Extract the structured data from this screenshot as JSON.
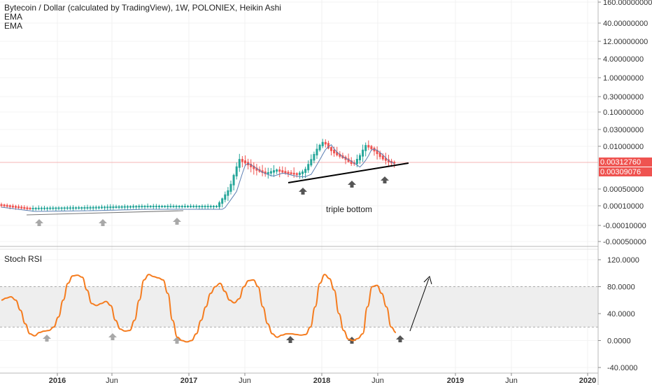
{
  "header": {
    "title": "Bytecoin / Dollar (calculated by TradingView), 1W, POLONIEX, Heikin Ashi",
    "indicator_1": "EMA",
    "indicator_2": "EMA"
  },
  "colors": {
    "up_candle": "#26a69a",
    "down_candle": "#ef5350",
    "ema_line": "#5b7fb3",
    "rsi_line": "#f57c1f",
    "trend_line": "#000000",
    "arrow_gray": "#a8a8a8",
    "arrow_dark": "#555555",
    "price_badge": "#ef5350",
    "rsi_band": "#eeeeee"
  },
  "chart_data": [
    {
      "type": "candlestick",
      "title": "Bytecoin / Dollar (calculated by TradingView), 1W, POLONIEX, Heikin Ashi",
      "y_scale": "log",
      "y_axis_ticks": [
        "160.00000000",
        "40.00000000",
        "12.00000000",
        "4.00000000",
        "1.00000000",
        "0.30000000",
        "0.10000000",
        "0.03000000",
        "0.01000000",
        "0.00050000",
        "0.00010000",
        "-0.00010000",
        "-0.00050000"
      ],
      "x_axis_ticks": [
        "2016",
        "Jun",
        "2017",
        "Jun",
        "2018",
        "Jun",
        "2019",
        "Jun",
        "2020"
      ],
      "price_labels": [
        "0.00312760",
        "0.00309076"
      ],
      "annotations": [
        "triple bottom"
      ],
      "legend": [
        "EMA",
        "EMA"
      ]
    },
    {
      "type": "line",
      "title": "Stoch RSI",
      "ylim": [
        -40,
        120
      ],
      "y_axis_ticks": [
        "120.0000",
        "80.0000",
        "40.0000",
        "0.0000",
        "-40.0000"
      ],
      "band": [
        20,
        80
      ],
      "series": [
        {
          "values": [
            60,
            63,
            65,
            60,
            45,
            25,
            10,
            7,
            12,
            14,
            15,
            20,
            35,
            60,
            85,
            96,
            97,
            94,
            75,
            55,
            52,
            55,
            58,
            52,
            30,
            17,
            14,
            15,
            30,
            60,
            90,
            98,
            95,
            93,
            90,
            70,
            30,
            5,
            0,
            -2,
            0,
            10,
            30,
            50,
            70,
            80,
            85,
            73,
            60,
            56,
            62,
            80,
            89,
            90,
            80,
            50,
            25,
            10,
            5,
            8,
            10,
            10,
            9,
            8,
            9,
            20,
            50,
            85,
            98,
            92,
            75,
            40,
            15,
            2,
            0,
            3,
            10,
            50,
            80,
            82,
            70,
            50,
            20,
            12
          ]
        }
      ],
      "annotations": []
    }
  ]
}
